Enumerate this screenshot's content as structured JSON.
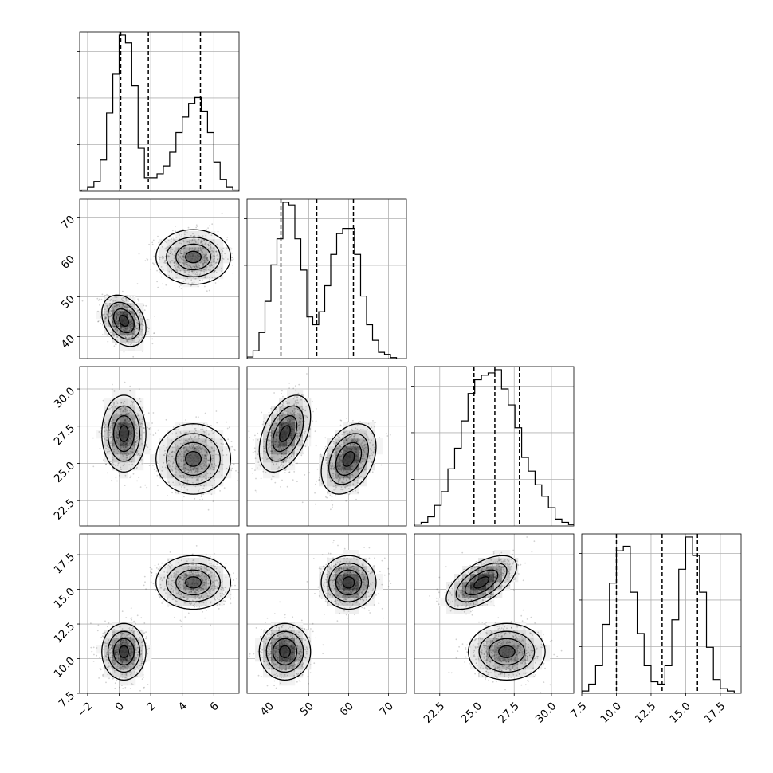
{
  "chart_data": {
    "type": "corner",
    "title": "",
    "n_params": 4,
    "grid": true,
    "colors": {
      "line": "#000000",
      "grid": "#b0b0b0",
      "scatter": "#000000"
    },
    "params": [
      {
        "index": 0,
        "label": "",
        "range": [
          -2.5,
          7.6
        ],
        "ticks": [
          -2,
          0,
          2,
          4,
          6
        ],
        "tick_labels": [
          "−2",
          "0",
          "2",
          "4",
          "6"
        ],
        "quantiles": [
          0.1,
          1.85,
          5.15
        ]
      },
      {
        "index": 1,
        "label": "",
        "range": [
          34.5,
          74.5
        ],
        "ticks": [
          40,
          50,
          60,
          70
        ],
        "tick_labels": [
          "40",
          "50",
          "60",
          "70"
        ],
        "quantiles": [
          43.0,
          52.0,
          61.2
        ]
      },
      {
        "index": 2,
        "label": "",
        "range": [
          20.8,
          31.5
        ],
        "ticks": [
          22.5,
          25.0,
          27.5,
          30.0
        ],
        "tick_labels": [
          "22.5",
          "25.0",
          "27.5",
          "30.0"
        ],
        "quantiles": [
          24.8,
          26.2,
          27.85
        ]
      },
      {
        "index": 3,
        "label": "",
        "range": [
          7.5,
          19.0
        ],
        "ticks": [
          7.5,
          10.0,
          12.5,
          15.0,
          17.5
        ],
        "tick_labels": [
          "7.5",
          "10.0",
          "12.5",
          "15.0",
          "17.5"
        ],
        "quantiles": [
          10.0,
          13.3,
          15.85
        ]
      }
    ],
    "modes": [
      {
        "weight": 0.5,
        "mean": [
          0.3,
          44.0,
          27.0,
          10.5
        ],
        "sd": [
          0.65,
          3.0,
          1.2,
          0.95
        ],
        "rho": {
          "0-1": -0.3,
          "0-2": 0.0,
          "1-2": 0.45,
          "0-3": 0.0,
          "1-3": 0.0,
          "2-3": 0.0
        }
      },
      {
        "weight": 0.5,
        "mean": [
          4.7,
          60.0,
          25.3,
          15.5
        ],
        "sd": [
          1.1,
          3.2,
          1.1,
          0.9
        ],
        "rho": {
          "0-1": 0.0,
          "0-2": 0.0,
          "1-2": 0.35,
          "0-3": 0.0,
          "1-3": 0.0,
          "2-3": 0.6
        }
      }
    ],
    "histograms": [
      {
        "param": 0,
        "bin_edges": [
          -2.4,
          -2.0,
          -1.6,
          -1.2,
          -0.8,
          -0.4,
          0.0,
          0.4,
          0.8,
          1.2,
          1.6,
          2.0,
          2.4,
          2.8,
          3.2,
          3.6,
          4.0,
          4.4,
          4.8,
          5.2,
          5.6,
          6.0,
          6.4,
          6.8,
          7.2,
          7.6
        ],
        "counts": [
          3,
          10,
          25,
          80,
          200,
          300,
          400,
          380,
          270,
          110,
          35,
          35,
          45,
          65,
          100,
          150,
          190,
          225,
          240,
          205,
          150,
          75,
          30,
          10,
          3
        ]
      },
      {
        "param": 1,
        "bin_edges": [
          34.5,
          36.0,
          37.5,
          39.0,
          40.5,
          42.0,
          43.5,
          45.0,
          46.5,
          48.0,
          49.5,
          51.0,
          52.5,
          54.0,
          55.5,
          57.0,
          58.5,
          60.0,
          61.5,
          63.0,
          64.5,
          66.0,
          67.5,
          69.0,
          70.5,
          72.0
        ],
        "counts": [
          3,
          15,
          50,
          110,
          180,
          230,
          300,
          295,
          230,
          170,
          80,
          65,
          90,
          140,
          200,
          240,
          250,
          250,
          200,
          120,
          65,
          35,
          12,
          8,
          2
        ]
      },
      {
        "param": 2,
        "bin_edges": [
          20.8,
          21.25,
          21.7,
          22.15,
          22.6,
          23.05,
          23.5,
          23.95,
          24.4,
          24.85,
          25.3,
          25.75,
          26.2,
          26.65,
          27.1,
          27.55,
          28.0,
          28.45,
          28.9,
          29.35,
          29.8,
          30.25,
          30.7,
          31.15,
          31.6
        ],
        "counts": [
          4,
          8,
          20,
          45,
          75,
          125,
          170,
          230,
          290,
          320,
          330,
          335,
          342,
          300,
          265,
          215,
          150,
          120,
          90,
          65,
          40,
          15,
          8,
          3
        ]
      },
      {
        "param": 3,
        "bin_edges": [
          7.5,
          8.0,
          8.5,
          9.0,
          9.5,
          10.0,
          10.5,
          11.0,
          11.5,
          12.0,
          12.5,
          13.0,
          13.5,
          14.0,
          14.5,
          15.0,
          15.5,
          16.0,
          16.5,
          17.0,
          17.5,
          18.0,
          18.5
        ],
        "counts": [
          5,
          20,
          60,
          150,
          240,
          310,
          320,
          220,
          130,
          60,
          25,
          20,
          60,
          160,
          270,
          340,
          300,
          220,
          100,
          30,
          10,
          5
        ]
      }
    ]
  }
}
